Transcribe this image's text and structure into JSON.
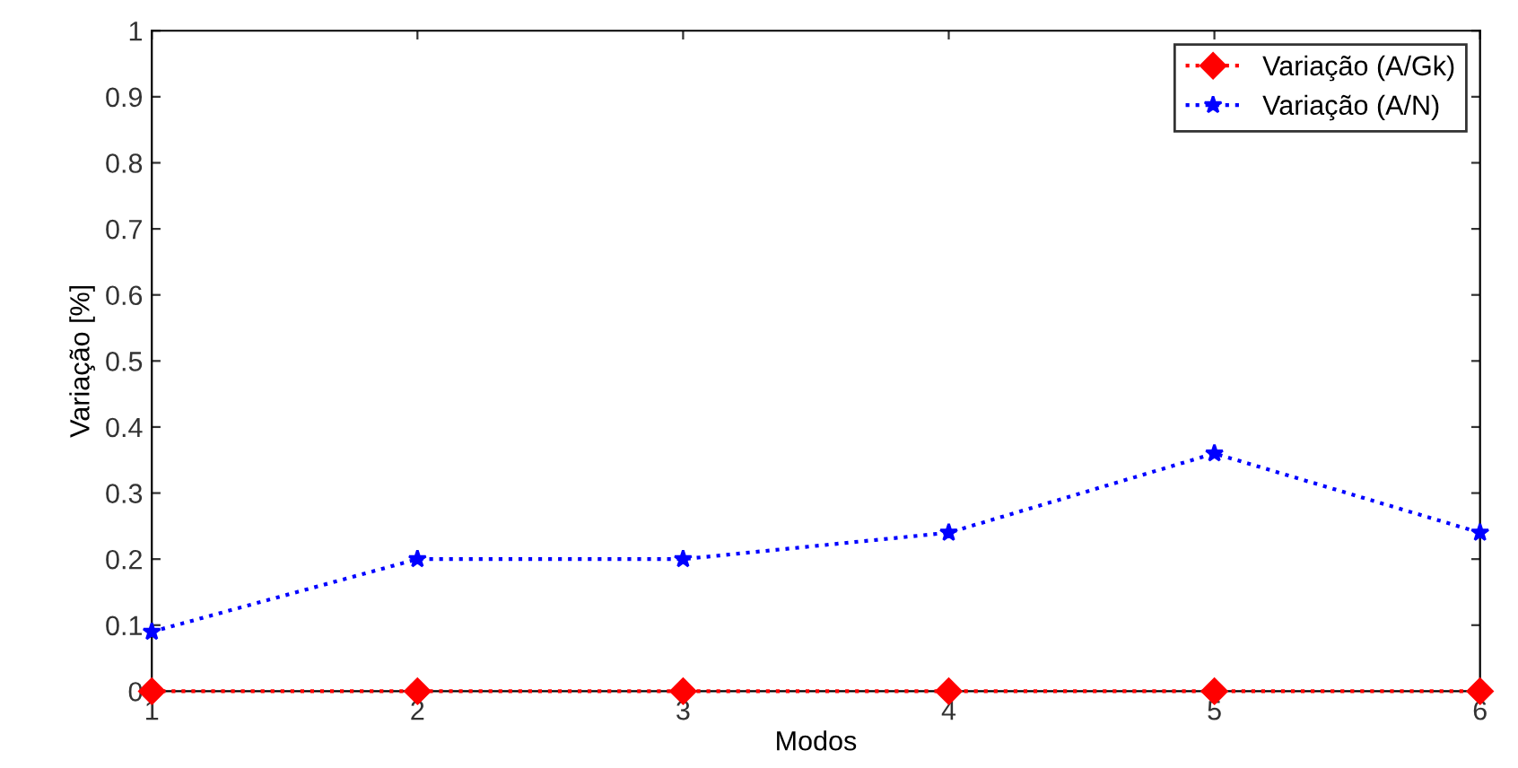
{
  "chart_data": {
    "type": "line",
    "xlabel": "Modos",
    "ylabel": "Variação [%]",
    "x": [
      1,
      2,
      3,
      4,
      5,
      6
    ],
    "series": [
      {
        "name": "Variação (A/Gk)",
        "color": "#ff0000",
        "marker": "diamond",
        "values": [
          0,
          0,
          0,
          0,
          0,
          0
        ]
      },
      {
        "name": "Variação (A/N)",
        "color": "#0000ff",
        "marker": "star",
        "values": [
          0.09,
          0.2,
          0.2,
          0.24,
          0.36,
          0.24
        ]
      }
    ],
    "xlim": [
      1,
      6
    ],
    "xticks": [
      1,
      2,
      3,
      4,
      5,
      6
    ],
    "ylim": [
      0,
      1
    ],
    "yticks": [
      0,
      0.1,
      0.2,
      0.3,
      0.4,
      0.5,
      0.6,
      0.7,
      0.8,
      0.9,
      1
    ],
    "line_style": "dotted",
    "legend": "top right",
    "grid": false
  }
}
